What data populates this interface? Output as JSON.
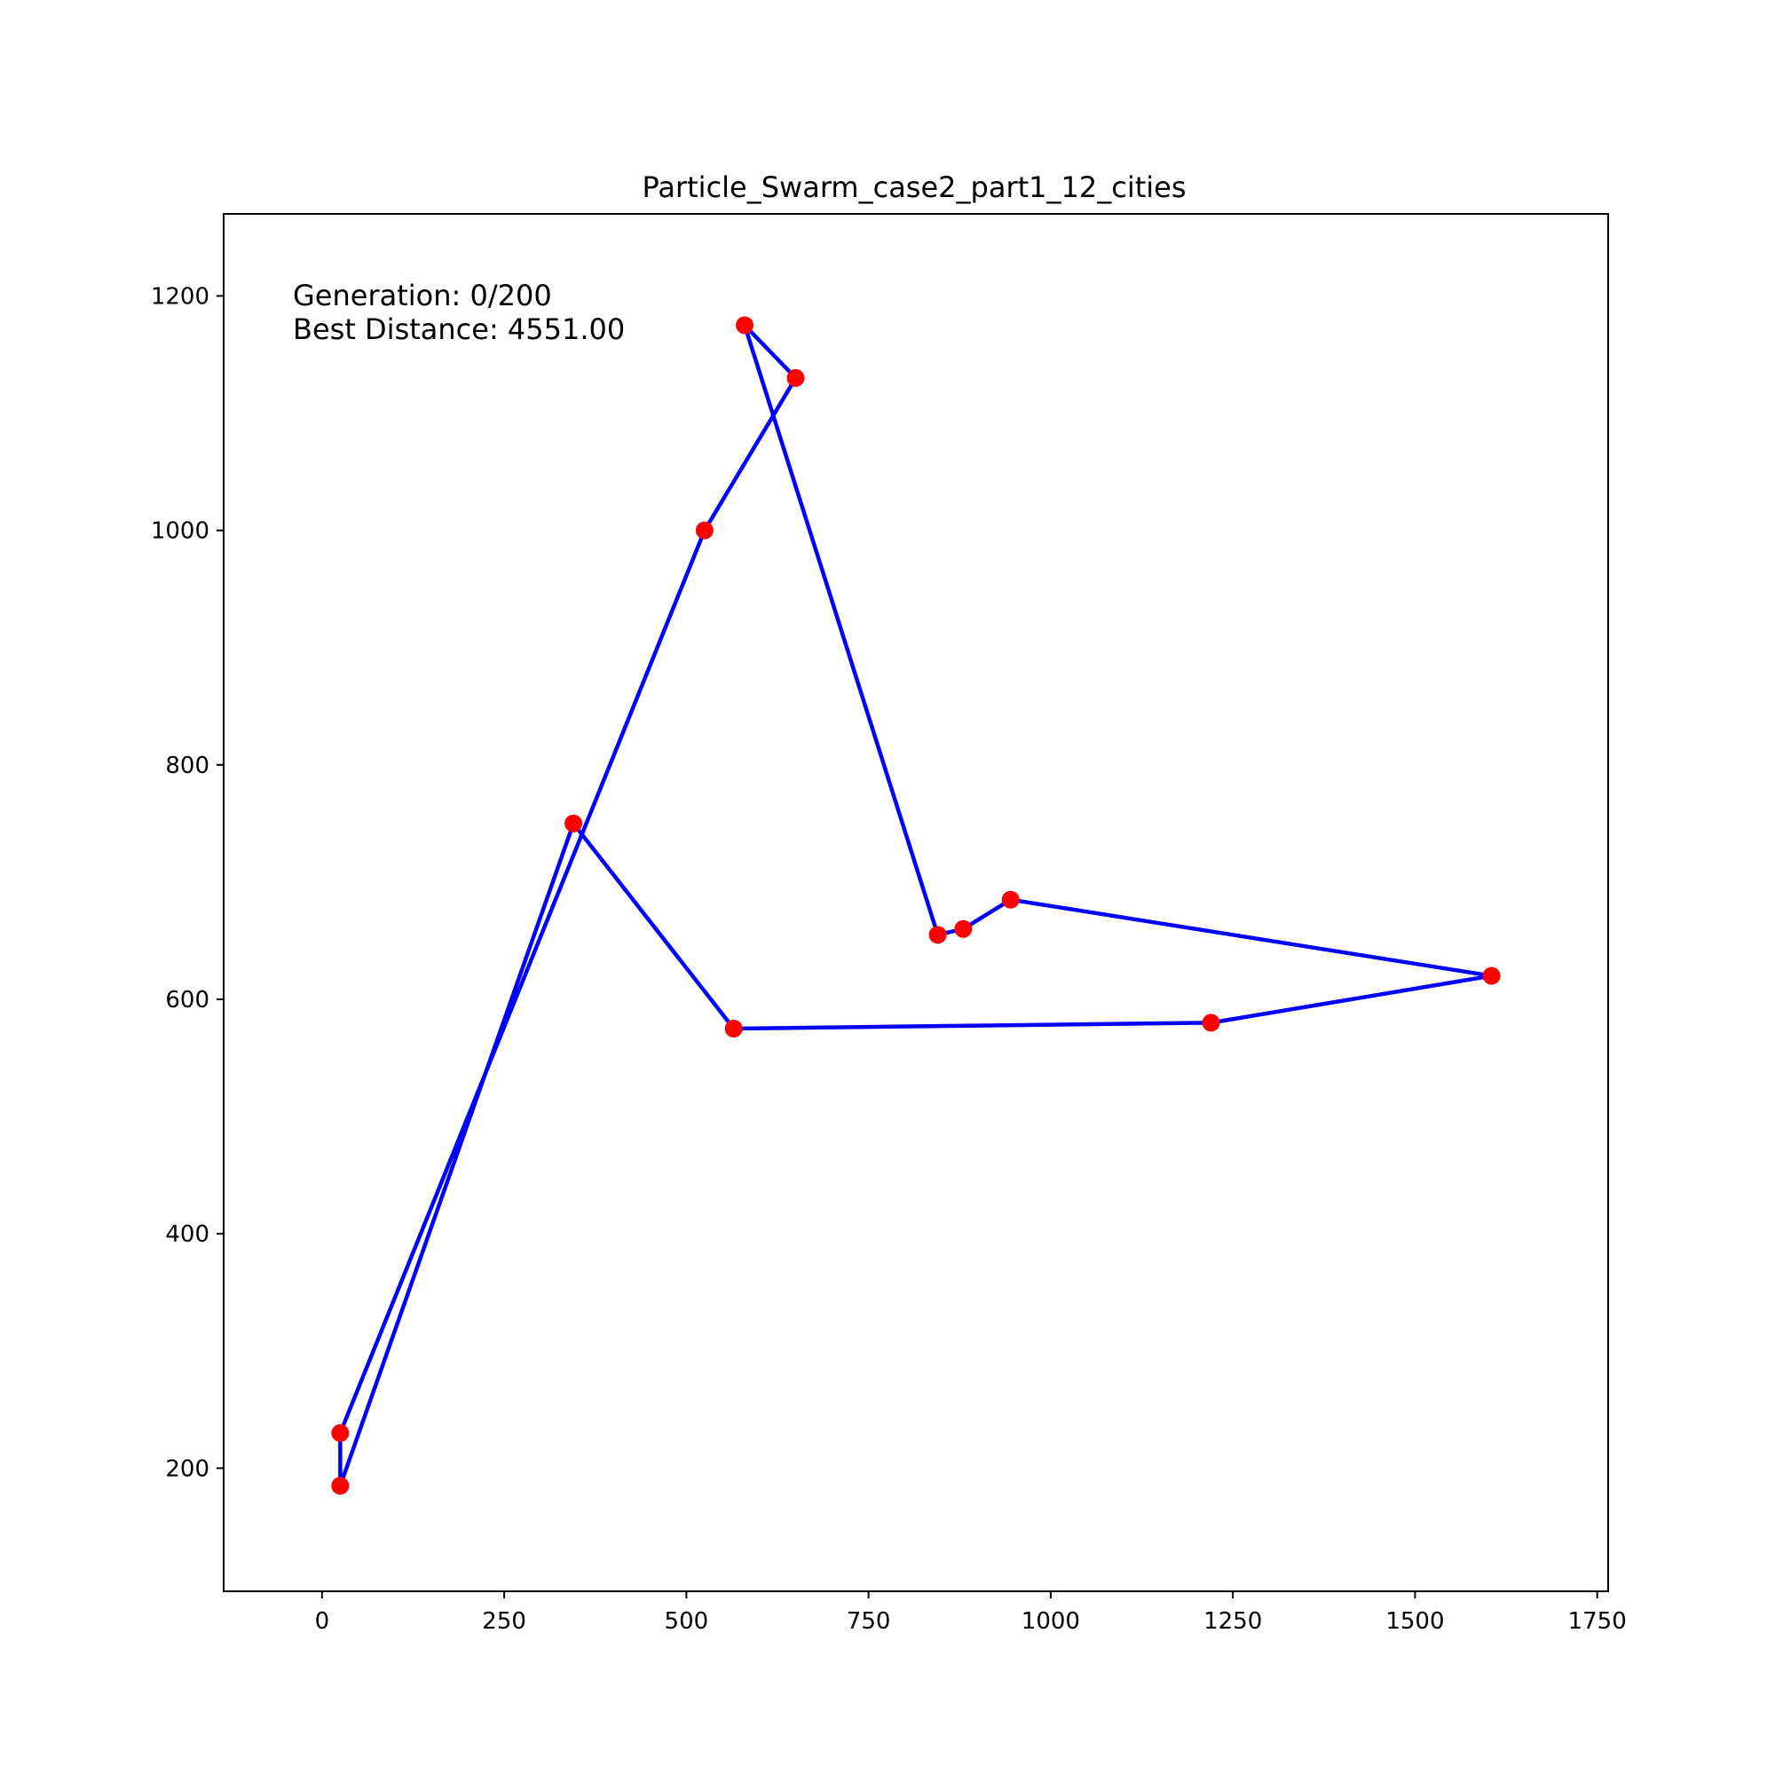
{
  "chart_data": {
    "type": "line",
    "title": "Particle_Swarm_case2_part1_12_cities",
    "xlabel": "",
    "ylabel": "",
    "xlim": [
      -135,
      1765
    ],
    "ylim": [
      95,
      1270
    ],
    "xticks": [
      0,
      250,
      500,
      750,
      1000,
      1250,
      1500,
      1750
    ],
    "yticks": [
      200,
      400,
      600,
      800,
      1000,
      1200
    ],
    "grid": false,
    "annotations": [
      "Generation: 0/200",
      "Best Distance: 4551.00"
    ],
    "colors": {
      "route": "#0000ff",
      "cities": "#ff0000"
    },
    "cities": [
      {
        "x": 25,
        "y": 185
      },
      {
        "x": 345,
        "y": 750
      },
      {
        "x": 565,
        "y": 575
      },
      {
        "x": 1220,
        "y": 580
      },
      {
        "x": 1605,
        "y": 620
      },
      {
        "x": 945,
        "y": 685
      },
      {
        "x": 880,
        "y": 660
      },
      {
        "x": 845,
        "y": 655
      },
      {
        "x": 580,
        "y": 1175
      },
      {
        "x": 650,
        "y": 1130
      },
      {
        "x": 525,
        "y": 1000
      },
      {
        "x": 25,
        "y": 230
      }
    ],
    "route": [
      {
        "x": 25,
        "y": 185
      },
      {
        "x": 345,
        "y": 750
      },
      {
        "x": 565,
        "y": 575
      },
      {
        "x": 1220,
        "y": 580
      },
      {
        "x": 1605,
        "y": 620
      },
      {
        "x": 945,
        "y": 685
      },
      {
        "x": 880,
        "y": 660
      },
      {
        "x": 845,
        "y": 655
      },
      {
        "x": 580,
        "y": 1175
      },
      {
        "x": 650,
        "y": 1130
      },
      {
        "x": 525,
        "y": 1000
      },
      {
        "x": 25,
        "y": 230
      },
      {
        "x": 25,
        "y": 185
      }
    ]
  }
}
